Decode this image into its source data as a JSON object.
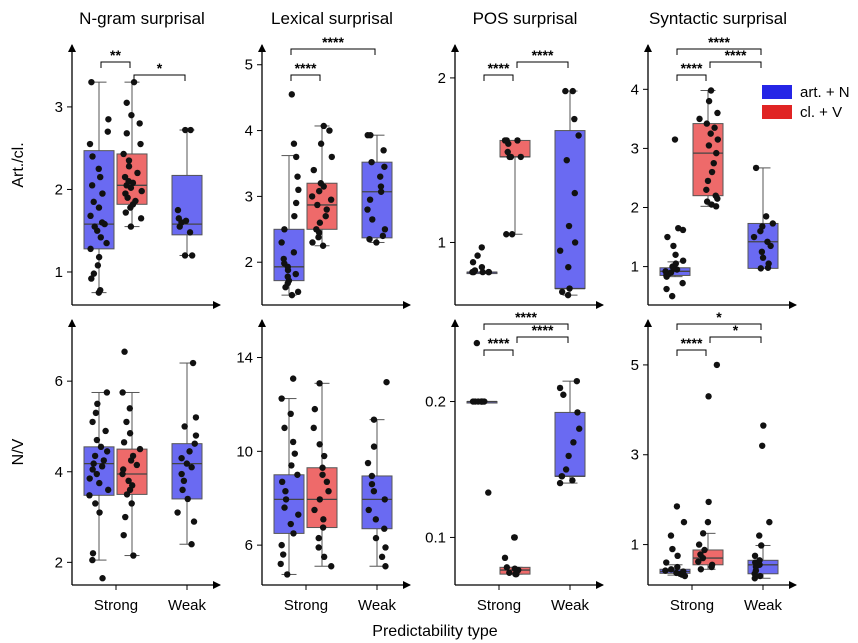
{
  "figure": {
    "xlabel": "Predictability type",
    "row_labels": [
      "Art./cl.",
      "N/V"
    ],
    "column_titles": [
      "N-gram surprisal",
      "Lexical surprisal",
      "POS surprisal",
      "Syntactic surprisal"
    ],
    "legend": [
      {
        "label": "art. + N",
        "color": "#2525e6"
      },
      {
        "label": "cl. + V",
        "color": "#e02424"
      }
    ],
    "x_tick_labels": [
      "Strong",
      "Weak"
    ]
  },
  "chart_data": [
    {
      "type": "box",
      "title": "N-gram surprisal",
      "ylabel": "Art./cl.",
      "categories": [
        "Strong",
        "Weak"
      ],
      "ylim": [
        0.6,
        3.75
      ],
      "yticks": [
        1,
        2,
        3
      ],
      "boxes": [
        {
          "series": "art. + N",
          "category": "Strong",
          "whislo": 0.75,
          "q1": 1.28,
          "med": 1.58,
          "q3": 2.47,
          "whishi": 3.3,
          "points": [
            0.75,
            0.78,
            0.92,
            0.98,
            1.08,
            1.18,
            1.28,
            1.35,
            1.42,
            1.5,
            1.55,
            1.58,
            1.6,
            1.68,
            1.78,
            1.85,
            1.95,
            2.05,
            2.15,
            2.25,
            2.4,
            2.55,
            2.7,
            2.85,
            3.3
          ]
        },
        {
          "series": "cl. + V",
          "category": "Strong",
          "whislo": 1.55,
          "q1": 1.82,
          "med": 2.05,
          "q3": 2.43,
          "whishi": 3.3,
          "points": [
            1.55,
            1.65,
            1.72,
            1.78,
            1.82,
            1.86,
            1.9,
            1.95,
            1.98,
            2.02,
            2.05,
            2.08,
            2.1,
            2.15,
            2.2,
            2.28,
            2.35,
            2.43,
            2.55,
            2.68,
            2.8,
            2.9,
            3.05,
            3.3
          ]
        },
        {
          "series": "art. + N",
          "category": "Weak",
          "whislo": 1.2,
          "q1": 1.45,
          "med": 1.58,
          "q3": 2.17,
          "whishi": 2.72,
          "points": [
            1.2,
            1.2,
            1.48,
            1.55,
            1.6,
            1.62,
            1.65,
            1.75,
            2.72,
            2.72
          ]
        }
      ],
      "significance": [
        {
          "pair": [
            "art. + N Strong",
            "cl. + V Strong"
          ],
          "stars": "**"
        },
        {
          "pair": [
            "cl. + V Strong",
            "art. + N Weak"
          ],
          "stars": "*"
        }
      ]
    },
    {
      "type": "box",
      "title": "Lexical surprisal",
      "ylabel": "",
      "categories": [
        "Strong",
        "Weak"
      ],
      "ylim": [
        1.35,
        5.3
      ],
      "yticks": [
        2,
        3,
        4,
        5
      ],
      "boxes": [
        {
          "series": "art. + N",
          "category": "Strong",
          "whislo": 1.5,
          "q1": 1.72,
          "med": 1.93,
          "q3": 2.5,
          "whishi": 3.62,
          "points": [
            1.5,
            1.55,
            1.62,
            1.68,
            1.72,
            1.78,
            1.82,
            1.88,
            1.93,
            1.98,
            2.05,
            2.15,
            2.3,
            2.5,
            2.7,
            2.9,
            3.1,
            3.3,
            3.6,
            3.8,
            4.55
          ]
        },
        {
          "series": "cl. + V",
          "category": "Strong",
          "whislo": 2.25,
          "q1": 2.5,
          "med": 2.87,
          "q3": 3.2,
          "whishi": 4.07,
          "points": [
            2.25,
            2.3,
            2.38,
            2.45,
            2.5,
            2.6,
            2.7,
            2.8,
            2.87,
            2.95,
            3.0,
            3.08,
            3.15,
            3.2,
            3.4,
            3.6,
            3.8,
            4.0,
            4.07
          ]
        },
        {
          "series": "art. + N",
          "category": "Weak",
          "whislo": 2.3,
          "q1": 2.37,
          "med": 3.07,
          "q3": 3.52,
          "whishi": 3.93,
          "points": [
            2.3,
            2.35,
            2.4,
            2.5,
            2.65,
            2.8,
            2.95,
            3.07,
            3.15,
            3.3,
            3.45,
            3.52,
            3.7,
            3.93,
            3.93
          ]
        }
      ],
      "significance": [
        {
          "pair": [
            "art. + N Strong",
            "cl. + V Strong"
          ],
          "stars": "****"
        },
        {
          "pair": [
            "art. + N Strong",
            "art. + N Weak"
          ],
          "stars": "****"
        }
      ]
    },
    {
      "type": "box",
      "title": "POS surprisal",
      "ylabel": "",
      "categories": [
        "Strong",
        "Weak"
      ],
      "ylim": [
        0.62,
        2.2
      ],
      "yticks": [
        1,
        2
      ],
      "boxes": [
        {
          "series": "art. + N",
          "category": "Strong",
          "whislo": 0.82,
          "q1": 0.82,
          "med": 0.82,
          "q3": 0.82,
          "whishi": 0.82,
          "points": [
            0.82,
            0.82,
            0.82,
            0.82,
            0.82,
            0.83,
            0.85,
            0.88,
            0.92,
            0.97
          ]
        },
        {
          "series": "cl. + V",
          "category": "Strong",
          "whislo": 1.05,
          "q1": 1.52,
          "med": 1.52,
          "q3": 1.62,
          "whishi": 1.62,
          "points": [
            1.05,
            1.05,
            1.52,
            1.52,
            1.52,
            1.55,
            1.6,
            1.62,
            1.62,
            1.62
          ]
        },
        {
          "series": "art. + N",
          "category": "Weak",
          "whislo": 0.68,
          "q1": 0.72,
          "med": 0.72,
          "q3": 1.68,
          "whishi": 1.92,
          "points": [
            0.68,
            0.7,
            0.72,
            0.85,
            0.95,
            1.0,
            1.1,
            1.3,
            1.5,
            1.65,
            1.75,
            1.92,
            1.92
          ]
        }
      ],
      "significance": [
        {
          "pair": [
            "art. + N Strong",
            "cl. + V Strong"
          ],
          "stars": "****"
        },
        {
          "pair": [
            "cl. + V Strong",
            "art. + N Weak"
          ],
          "stars": "****"
        }
      ]
    },
    {
      "type": "box",
      "title": "Syntactic surprisal",
      "ylabel": "",
      "categories": [
        "Strong",
        "Weak"
      ],
      "ylim": [
        0.35,
        4.75
      ],
      "yticks": [
        1,
        2,
        3,
        4
      ],
      "boxes": [
        {
          "series": "art. + N",
          "category": "Strong",
          "whislo": 0.83,
          "q1": 0.85,
          "med": 0.92,
          "q3": 0.98,
          "whishi": 1.08,
          "points": [
            0.5,
            0.62,
            0.72,
            0.83,
            0.85,
            0.88,
            0.9,
            0.92,
            0.95,
            0.97,
            1.0,
            1.05,
            1.1,
            1.2,
            1.35,
            1.5,
            1.62,
            1.65,
            3.15
          ]
        },
        {
          "series": "cl. + V",
          "category": "Strong",
          "whislo": 2.02,
          "q1": 2.2,
          "med": 2.92,
          "q3": 3.42,
          "whishi": 3.98,
          "points": [
            2.02,
            2.05,
            2.1,
            2.15,
            2.2,
            2.3,
            2.45,
            2.6,
            2.75,
            2.92,
            3.05,
            3.15,
            3.25,
            3.35,
            3.42,
            3.5,
            3.6,
            3.8,
            3.98
          ]
        },
        {
          "series": "art. + N",
          "category": "Weak",
          "whislo": 0.97,
          "q1": 0.97,
          "med": 1.42,
          "q3": 1.73,
          "whishi": 2.67,
          "points": [
            0.97,
            0.98,
            1.05,
            1.15,
            1.25,
            1.35,
            1.42,
            1.5,
            1.6,
            1.68,
            1.73,
            1.85,
            2.67
          ]
        }
      ],
      "significance": [
        {
          "pair": [
            "art. + N Strong",
            "cl. + V Strong"
          ],
          "stars": "****"
        },
        {
          "pair": [
            "cl. + V Strong",
            "art. + N Weak"
          ],
          "stars": "****"
        },
        {
          "pair": [
            "art. + N Strong",
            "art. + N Weak"
          ],
          "stars": "****"
        }
      ]
    },
    {
      "type": "box",
      "title": "",
      "ylabel": "N/V",
      "categories": [
        "Strong",
        "Weak"
      ],
      "ylim": [
        1.5,
        7.35
      ],
      "yticks": [
        2,
        4,
        6
      ],
      "boxes": [
        {
          "series": "art. + N",
          "category": "Strong",
          "whislo": 2.05,
          "q1": 3.48,
          "med": 4.18,
          "q3": 4.55,
          "whishi": 5.75,
          "points": [
            1.65,
            2.05,
            2.2,
            3.1,
            3.3,
            3.48,
            3.6,
            3.75,
            3.85,
            3.95,
            4.05,
            4.12,
            4.18,
            4.25,
            4.35,
            4.45,
            4.55,
            4.7,
            4.9,
            5.1,
            5.3,
            5.5,
            5.75
          ]
        },
        {
          "series": "cl. + V",
          "category": "Strong",
          "whislo": 2.15,
          "q1": 3.5,
          "med": 3.95,
          "q3": 4.5,
          "whishi": 5.75,
          "points": [
            2.15,
            2.6,
            3.0,
            3.3,
            3.5,
            3.6,
            3.7,
            3.8,
            3.95,
            4.05,
            4.15,
            4.25,
            4.35,
            4.5,
            4.65,
            4.85,
            5.1,
            5.4,
            5.75,
            6.65
          ]
        },
        {
          "series": "art. + N",
          "category": "Weak",
          "whislo": 2.4,
          "q1": 3.4,
          "med": 4.18,
          "q3": 4.62,
          "whishi": 6.4,
          "points": [
            2.4,
            2.9,
            3.1,
            3.4,
            3.6,
            3.8,
            3.95,
            4.1,
            4.18,
            4.3,
            4.45,
            4.62,
            4.8,
            5.0,
            5.2,
            6.4
          ]
        }
      ],
      "significance": []
    },
    {
      "type": "box",
      "title": "",
      "ylabel": "",
      "categories": [
        "Strong",
        "Weak"
      ],
      "ylim": [
        4.3,
        15.6
      ],
      "yticks": [
        6,
        10,
        14
      ],
      "boxes": [
        {
          "series": "art. + N",
          "category": "Strong",
          "whislo": 4.75,
          "q1": 6.5,
          "med": 7.95,
          "q3": 9.0,
          "whishi": 12.25,
          "points": [
            4.75,
            5.2,
            5.6,
            6.0,
            6.5,
            6.9,
            7.3,
            7.6,
            7.95,
            8.3,
            8.7,
            9.0,
            9.4,
            9.9,
            10.4,
            11.0,
            11.6,
            12.25,
            13.1
          ]
        },
        {
          "series": "cl. + V",
          "category": "Strong",
          "whislo": 5.1,
          "q1": 6.75,
          "med": 7.95,
          "q3": 9.3,
          "whishi": 12.9,
          "points": [
            5.1,
            5.5,
            5.9,
            6.3,
            6.75,
            7.1,
            7.5,
            7.95,
            8.3,
            8.7,
            9.0,
            9.3,
            9.8,
            10.3,
            11.0,
            11.8,
            12.9
          ]
        },
        {
          "series": "art. + N",
          "category": "Weak",
          "whislo": 5.1,
          "q1": 6.7,
          "med": 7.95,
          "q3": 8.95,
          "whishi": 11.35,
          "points": [
            5.1,
            5.5,
            5.9,
            6.3,
            6.7,
            7.1,
            7.5,
            7.95,
            8.3,
            8.6,
            8.95,
            9.5,
            10.2,
            11.35,
            12.95
          ]
        }
      ],
      "significance": []
    },
    {
      "type": "box",
      "title": "",
      "ylabel": "",
      "categories": [
        "Strong",
        "Weak"
      ],
      "ylim": [
        0.065,
        0.26
      ],
      "yticks": [
        0.1,
        0.2
      ],
      "boxes": [
        {
          "series": "art. + N",
          "category": "Strong",
          "whislo": 0.2,
          "q1": 0.2,
          "med": 0.2,
          "q3": 0.2,
          "whishi": 0.2,
          "points": [
            0.133,
            0.2,
            0.2,
            0.2,
            0.2,
            0.2,
            0.2,
            0.2,
            0.243
          ]
        },
        {
          "series": "cl. + V",
          "category": "Strong",
          "whislo": 0.073,
          "q1": 0.073,
          "med": 0.076,
          "q3": 0.078,
          "whishi": 0.078,
          "points": [
            0.073,
            0.073,
            0.074,
            0.075,
            0.076,
            0.077,
            0.078,
            0.085,
            0.1,
            0.1
          ]
        },
        {
          "series": "art. + N",
          "category": "Weak",
          "whislo": 0.14,
          "q1": 0.145,
          "med": 0.145,
          "q3": 0.192,
          "whishi": 0.215,
          "points": [
            0.14,
            0.142,
            0.145,
            0.145,
            0.15,
            0.16,
            0.17,
            0.18,
            0.192,
            0.205,
            0.21,
            0.215
          ]
        }
      ],
      "significance": [
        {
          "pair": [
            "art. + N Strong",
            "cl. + V Strong"
          ],
          "stars": "****"
        },
        {
          "pair": [
            "cl. + V Strong",
            "art. + N Weak"
          ],
          "stars": "****"
        },
        {
          "pair": [
            "art. + N Strong",
            "art. + N Weak"
          ],
          "stars": "****"
        }
      ]
    },
    {
      "type": "box",
      "title": "",
      "ylabel": "",
      "categories": [
        "Strong",
        "Weak"
      ],
      "ylim": [
        0.1,
        6.0
      ],
      "yticks": [
        1,
        3,
        5
      ],
      "boxes": [
        {
          "series": "art. + N",
          "category": "Strong",
          "whislo": 0.32,
          "q1": 0.36,
          "med": 0.4,
          "q3": 0.45,
          "whishi": 0.55,
          "points": [
            0.3,
            0.33,
            0.35,
            0.37,
            0.4,
            0.42,
            0.45,
            0.5,
            0.6,
            0.75,
            0.9,
            1.2,
            1.5,
            1.85
          ]
        },
        {
          "series": "cl. + V",
          "category": "Strong",
          "whislo": 0.45,
          "q1": 0.55,
          "med": 0.7,
          "q3": 0.88,
          "whishi": 1.25,
          "points": [
            0.45,
            0.5,
            0.55,
            0.62,
            0.7,
            0.78,
            0.88,
            1.0,
            1.25,
            1.5,
            1.95,
            4.3,
            5.0
          ]
        },
        {
          "series": "art. + N",
          "category": "Weak",
          "whislo": 0.25,
          "q1": 0.35,
          "med": 0.55,
          "q3": 0.65,
          "whishi": 0.98,
          "points": [
            0.25,
            0.3,
            0.35,
            0.42,
            0.5,
            0.55,
            0.6,
            0.65,
            0.75,
            0.98,
            1.2,
            1.5,
            3.2,
            3.65
          ]
        }
      ],
      "significance": [
        {
          "pair": [
            "art. + N Strong",
            "art. + N Weak"
          ],
          "stars": "*"
        },
        {
          "pair": [
            "cl. + V Strong",
            "art. + N Weak"
          ],
          "stars": "*"
        },
        {
          "pair": [
            "art. + N Strong",
            "cl. + V Strong"
          ],
          "stars": "****"
        }
      ]
    }
  ]
}
